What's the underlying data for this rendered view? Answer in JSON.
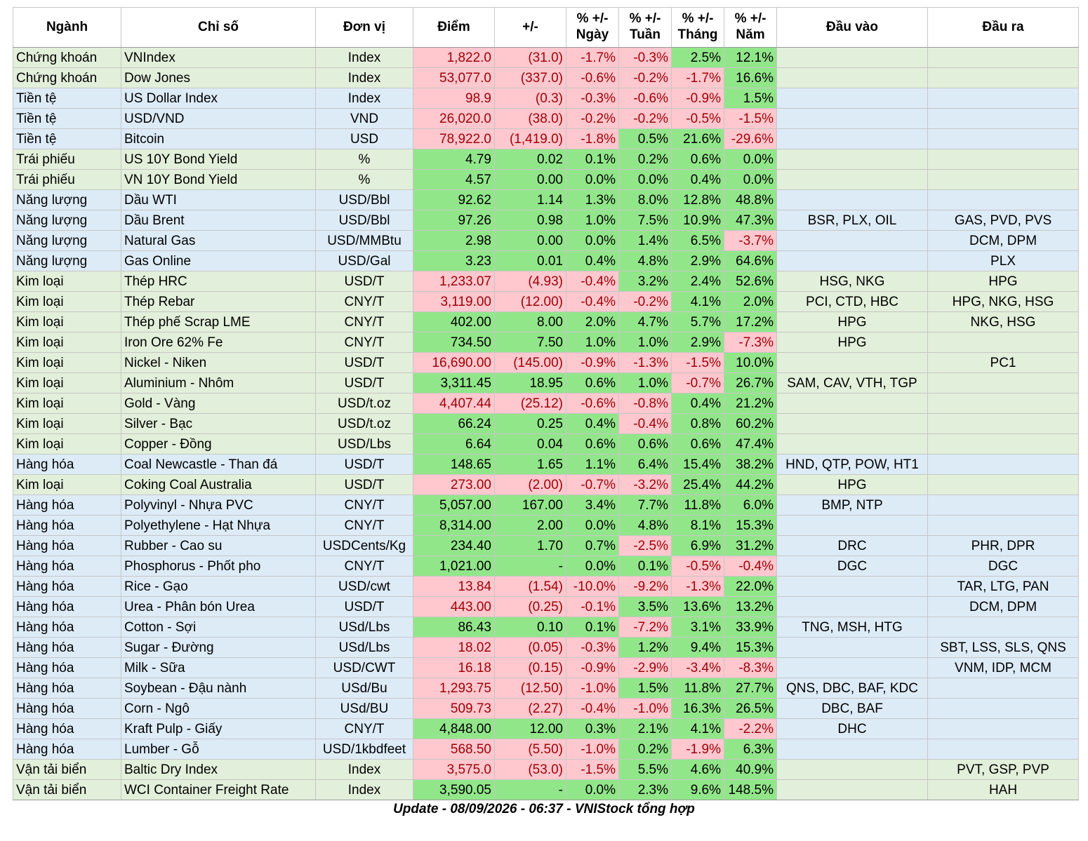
{
  "colors": {
    "green_row": "#e2efda",
    "blue_row": "#ddebf7",
    "up": "#92e68a",
    "down": "#ffc7ce",
    "down_text": "#9c0006",
    "up_text": "#006100"
  },
  "headers": [
    "Ngành",
    "Chỉ số",
    "Đơn vị",
    "Điểm",
    "+/-",
    "% +/-\nNgày",
    "% +/-\nTuần",
    "% +/-\nTháng",
    "% +/-\nNăm",
    "Đầu vào",
    "Đầu ra"
  ],
  "rows": [
    {
      "sector": "Chứng khoán",
      "index": "VNIndex",
      "unit": "Index",
      "point": "1,822.0",
      "change": "(31.0)",
      "day": "-1.7%",
      "week": "-0.3%",
      "month": "2.5%",
      "year": "12.1%",
      "input": "",
      "output": "",
      "bg": "green"
    },
    {
      "sector": "Chứng khoán",
      "index": "Dow Jones",
      "unit": "Index",
      "point": "53,077.0",
      "change": "(337.0)",
      "day": "-0.6%",
      "week": "-0.2%",
      "month": "-1.7%",
      "year": "16.6%",
      "input": "",
      "output": "",
      "bg": "green"
    },
    {
      "sector": "Tiền tệ",
      "index": "US Dollar Index",
      "unit": "Index",
      "point": "98.9",
      "change": "(0.3)",
      "day": "-0.3%",
      "week": "-0.6%",
      "month": "-0.9%",
      "year": "1.5%",
      "input": "",
      "output": "",
      "bg": "blue"
    },
    {
      "sector": "Tiền tệ",
      "index": "USD/VND",
      "unit": "VND",
      "point": "26,020.0",
      "change": "(38.0)",
      "day": "-0.2%",
      "week": "-0.2%",
      "month": "-0.5%",
      "year": "-1.5%",
      "input": "",
      "output": "",
      "bg": "blue"
    },
    {
      "sector": "Tiền tệ",
      "index": "Bitcoin",
      "unit": "USD",
      "point": "78,922.0",
      "change": "(1,419.0)",
      "day": "-1.8%",
      "week": "0.5%",
      "month": "21.6%",
      "year": "-29.6%",
      "input": "",
      "output": "",
      "bg": "blue"
    },
    {
      "sector": "Trái phiếu",
      "index": "US 10Y Bond Yield",
      "unit": "%",
      "point": "4.79",
      "change": "0.02",
      "day": "0.1%",
      "week": "0.2%",
      "month": "0.6%",
      "year": "0.0%",
      "input": "",
      "output": "",
      "bg": "green"
    },
    {
      "sector": "Trái phiếu",
      "index": "VN 10Y Bond Yield",
      "unit": "%",
      "point": "4.57",
      "change": "0.00",
      "day": "0.0%",
      "week": "0.0%",
      "month": "0.4%",
      "year": "0.0%",
      "input": "",
      "output": "",
      "bg": "green"
    },
    {
      "sector": "Năng lượng",
      "index": "Dầu WTI",
      "unit": "USD/Bbl",
      "point": "92.62",
      "change": "1.14",
      "day": "1.3%",
      "week": "8.0%",
      "month": "12.8%",
      "year": "48.8%",
      "input": "",
      "output": "",
      "bg": "blue"
    },
    {
      "sector": "Năng lượng",
      "index": "Dầu Brent",
      "unit": "USD/Bbl",
      "point": "97.26",
      "change": "0.98",
      "day": "1.0%",
      "week": "7.5%",
      "month": "10.9%",
      "year": "47.3%",
      "input": "BSR, PLX, OIL",
      "output": "GAS, PVD, PVS",
      "bg": "blue"
    },
    {
      "sector": "Năng lượng",
      "index": "Natural Gas",
      "unit": "USD/MMBtu",
      "point": "2.98",
      "change": "0.00",
      "day": "0.0%",
      "week": "1.4%",
      "month": "6.5%",
      "year": "-3.7%",
      "input": "",
      "output": "DCM, DPM",
      "bg": "blue"
    },
    {
      "sector": "Năng lượng",
      "index": "Gas Online",
      "unit": "USD/Gal",
      "point": "3.23",
      "change": "0.01",
      "day": "0.4%",
      "week": "4.8%",
      "month": "2.9%",
      "year": "64.6%",
      "input": "",
      "output": "PLX",
      "bg": "blue"
    },
    {
      "sector": "Kim loại",
      "index": "Thép HRC",
      "unit": "USD/T",
      "point": "1,233.07",
      "change": "(4.93)",
      "day": "-0.4%",
      "week": "3.2%",
      "month": "2.4%",
      "year": "52.6%",
      "input": "HSG, NKG",
      "output": "HPG",
      "bg": "green"
    },
    {
      "sector": "Kim loại",
      "index": "Thép Rebar",
      "unit": "CNY/T",
      "point": "3,119.00",
      "change": "(12.00)",
      "day": "-0.4%",
      "week": "-0.2%",
      "month": "4.1%",
      "year": "2.0%",
      "input": "PCI, CTD, HBC",
      "output": "HPG, NKG, HSG",
      "bg": "green"
    },
    {
      "sector": "Kim loại",
      "index": "Thép phế Scrap LME",
      "unit": "CNY/T",
      "point": "402.00",
      "change": "8.00",
      "day": "2.0%",
      "week": "4.7%",
      "month": "5.7%",
      "year": "17.2%",
      "input": "HPG",
      "output": "NKG, HSG",
      "bg": "green"
    },
    {
      "sector": "Kim loại",
      "index": "Iron Ore 62% Fe",
      "unit": "CNY/T",
      "point": "734.50",
      "change": "7.50",
      "day": "1.0%",
      "week": "1.0%",
      "month": "2.9%",
      "year": "-7.3%",
      "input": "HPG",
      "output": "",
      "bg": "green"
    },
    {
      "sector": "Kim loại",
      "index": "Nickel - Niken",
      "unit": "USD/T",
      "point": "16,690.00",
      "change": "(145.00)",
      "day": "-0.9%",
      "week": "-1.3%",
      "month": "-1.5%",
      "year": "10.0%",
      "input": "",
      "output": "PC1",
      "bg": "green"
    },
    {
      "sector": "Kim loại",
      "index": "Aluminium - Nhôm",
      "unit": "USD/T",
      "point": "3,311.45",
      "change": "18.95",
      "day": "0.6%",
      "week": "1.0%",
      "month": "-0.7%",
      "year": "26.7%",
      "input": "SAM, CAV, VTH, TGP",
      "output": "",
      "bg": "green"
    },
    {
      "sector": "Kim loại",
      "index": "Gold - Vàng",
      "unit": "USD/t.oz",
      "point": "4,407.44",
      "change": "(25.12)",
      "day": "-0.6%",
      "week": "-0.8%",
      "month": "0.4%",
      "year": "21.2%",
      "input": "",
      "output": "",
      "bg": "green"
    },
    {
      "sector": "Kim loại",
      "index": "Silver - Bạc",
      "unit": "USD/t.oz",
      "point": "66.24",
      "change": "0.25",
      "day": "0.4%",
      "week": "-0.4%",
      "month": "0.8%",
      "year": "60.2%",
      "input": "",
      "output": "",
      "bg": "green"
    },
    {
      "sector": "Kim loại",
      "index": "Copper - Đồng",
      "unit": "USD/Lbs",
      "point": "6.64",
      "change": "0.04",
      "day": "0.6%",
      "week": "0.6%",
      "month": "0.6%",
      "year": "47.4%",
      "input": "",
      "output": "",
      "bg": "green"
    },
    {
      "sector": "Hàng hóa",
      "index": "Coal Newcastle - Than đá",
      "unit": "USD/T",
      "point": "148.65",
      "change": "1.65",
      "day": "1.1%",
      "week": "6.4%",
      "month": "15.4%",
      "year": "38.2%",
      "input": "HND, QTP, POW, HT1",
      "output": "",
      "bg": "blue"
    },
    {
      "sector": "Kim loại",
      "index": "Coking Coal Australia",
      "unit": "USD/T",
      "point": "273.00",
      "change": "(2.00)",
      "day": "-0.7%",
      "week": "-3.2%",
      "month": "25.4%",
      "year": "44.2%",
      "input": "HPG",
      "output": "",
      "bg": "green"
    },
    {
      "sector": "Hàng hóa",
      "index": "Polyvinyl - Nhựa PVC",
      "unit": "CNY/T",
      "point": "5,057.00",
      "change": "167.00",
      "day": "3.4%",
      "week": "7.7%",
      "month": "11.8%",
      "year": "6.0%",
      "input": "BMP, NTP",
      "output": "",
      "bg": "blue"
    },
    {
      "sector": "Hàng hóa",
      "index": "Polyethylene - Hạt Nhựa",
      "unit": "CNY/T",
      "point": "8,314.00",
      "change": "2.00",
      "day": "0.0%",
      "week": "4.8%",
      "month": "8.1%",
      "year": "15.3%",
      "input": "",
      "output": "",
      "bg": "blue"
    },
    {
      "sector": "Hàng hóa",
      "index": "Rubber - Cao su",
      "unit": "USDCents/Kg",
      "point": "234.40",
      "change": "1.70",
      "day": "0.7%",
      "week": "-2.5%",
      "month": "6.9%",
      "year": "31.2%",
      "input": "DRC",
      "output": "PHR, DPR",
      "bg": "blue"
    },
    {
      "sector": "Hàng hóa",
      "index": "Phosphorus - Phốt pho",
      "unit": "CNY/T",
      "point": "1,021.00",
      "change": "-",
      "day": "0.0%",
      "week": "0.1%",
      "month": "-0.5%",
      "year": "-0.4%",
      "input": "DGC",
      "output": "DGC",
      "bg": "blue"
    },
    {
      "sector": "Hàng hóa",
      "index": "Rice - Gạo",
      "unit": "USD/cwt",
      "point": "13.84",
      "change": "(1.54)",
      "day": "-10.0%",
      "week": "-9.2%",
      "month": "-1.3%",
      "year": "22.0%",
      "input": "",
      "output": "TAR, LTG, PAN",
      "bg": "blue"
    },
    {
      "sector": "Hàng hóa",
      "index": "Urea - Phân bón Urea",
      "unit": "USD/T",
      "point": "443.00",
      "change": "(0.25)",
      "day": "-0.1%",
      "week": "3.5%",
      "month": "13.6%",
      "year": "13.2%",
      "input": "",
      "output": "DCM, DPM",
      "bg": "blue"
    },
    {
      "sector": "Hàng hóa",
      "index": "Cotton - Sợi",
      "unit": "USd/Lbs",
      "point": "86.43",
      "change": "0.10",
      "day": "0.1%",
      "week": "-7.2%",
      "month": "3.1%",
      "year": "33.9%",
      "input": "TNG, MSH, HTG",
      "output": "",
      "bg": "blue"
    },
    {
      "sector": "Hàng hóa",
      "index": "Sugar - Đường",
      "unit": "USd/Lbs",
      "point": "18.02",
      "change": "(0.05)",
      "day": "-0.3%",
      "week": "1.2%",
      "month": "9.4%",
      "year": "15.3%",
      "input": "",
      "output": "SBT, LSS, SLS, QNS",
      "bg": "blue"
    },
    {
      "sector": "Hàng hóa",
      "index": "Milk - Sữa",
      "unit": "USD/CWT",
      "point": "16.18",
      "change": "(0.15)",
      "day": "-0.9%",
      "week": "-2.9%",
      "month": "-3.4%",
      "year": "-8.3%",
      "input": "",
      "output": "VNM, IDP, MCM",
      "bg": "blue"
    },
    {
      "sector": "Hàng hóa",
      "index": "Soybean - Đậu nành",
      "unit": "USd/Bu",
      "point": "1,293.75",
      "change": "(12.50)",
      "day": "-1.0%",
      "week": "1.5%",
      "month": "11.8%",
      "year": "27.7%",
      "input": "QNS, DBC, BAF, KDC",
      "output": "",
      "bg": "blue"
    },
    {
      "sector": "Hàng hóa",
      "index": "Corn - Ngô",
      "unit": "USd/BU",
      "point": "509.73",
      "change": "(2.27)",
      "day": "-0.4%",
      "week": "-1.0%",
      "month": "16.3%",
      "year": "26.5%",
      "input": "DBC, BAF",
      "output": "",
      "bg": "blue"
    },
    {
      "sector": "Hàng hóa",
      "index": "Kraft Pulp - Giấy",
      "unit": "CNY/T",
      "point": "4,848.00",
      "change": "12.00",
      "day": "0.3%",
      "week": "2.1%",
      "month": "4.1%",
      "year": "-2.2%",
      "input": "DHC",
      "output": "",
      "bg": "blue"
    },
    {
      "sector": "Hàng hóa",
      "index": "Lumber - Gỗ",
      "unit": "USD/1kbdfeet",
      "point": "568.50",
      "change": "(5.50)",
      "day": "-1.0%",
      "week": "0.2%",
      "month": "-1.9%",
      "year": "6.3%",
      "input": "",
      "output": "",
      "bg": "blue"
    },
    {
      "sector": "Vận tải biển",
      "index": "Baltic Dry Index",
      "unit": "Index",
      "point": "3,575.0",
      "change": "(53.0)",
      "day": "-1.5%",
      "week": "5.5%",
      "month": "4.6%",
      "year": "40.9%",
      "input": "",
      "output": "PVT, GSP, PVP",
      "bg": "green"
    },
    {
      "sector": "Vận tải biển",
      "index": "WCI Container Freight Rate",
      "unit": "Index",
      "point": "3,590.05",
      "change": "-",
      "day": "0.0%",
      "week": "2.3%",
      "month": "9.6%",
      "year": "148.5%",
      "input": "",
      "output": "HAH",
      "bg": "green"
    }
  ],
  "footer": "Update - 08/09/2026 - 06:37 - VNIStock tổng hợp"
}
